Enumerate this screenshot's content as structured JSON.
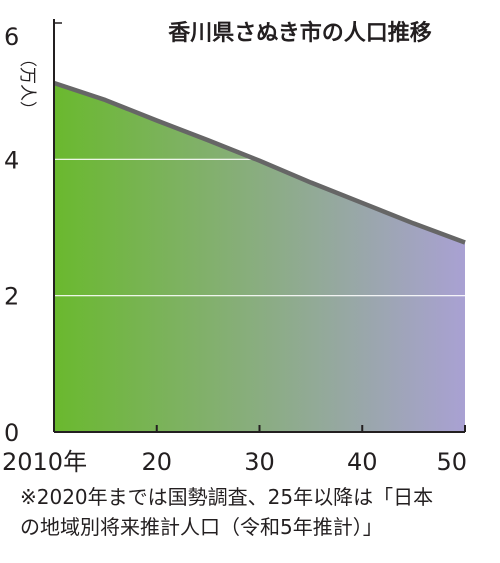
{
  "chart_data": {
    "type": "area",
    "title": "香川県さぬき市の人口推移",
    "ylabel": "（万人）",
    "x": [
      2010,
      2015,
      2020,
      2025,
      2030,
      2035,
      2040,
      2045,
      2050
    ],
    "y": [
      5.12,
      4.87,
      4.57,
      4.28,
      3.98,
      3.66,
      3.36,
      3.06,
      2.78
    ],
    "ylim": [
      0,
      6
    ],
    "xlim": [
      2010,
      2050
    ],
    "y_ticks": [
      0,
      2,
      4,
      6
    ],
    "x_ticks": [
      {
        "value": 2010,
        "label": "2010年"
      },
      {
        "value": 2020,
        "label": "20"
      },
      {
        "value": 2030,
        "label": "30"
      },
      {
        "value": 2040,
        "label": "40"
      },
      {
        "value": 2050,
        "label": "50"
      }
    ],
    "grid": true,
    "fill_gradient": [
      "#6ab92e",
      "#a9a1d3"
    ],
    "line_color": "#666666"
  },
  "footnote": {
    "line1": "※2020年までは国勢調査、25年以降は「日本",
    "line2": "の地域別将来推計人口（令和5年推計）」"
  }
}
